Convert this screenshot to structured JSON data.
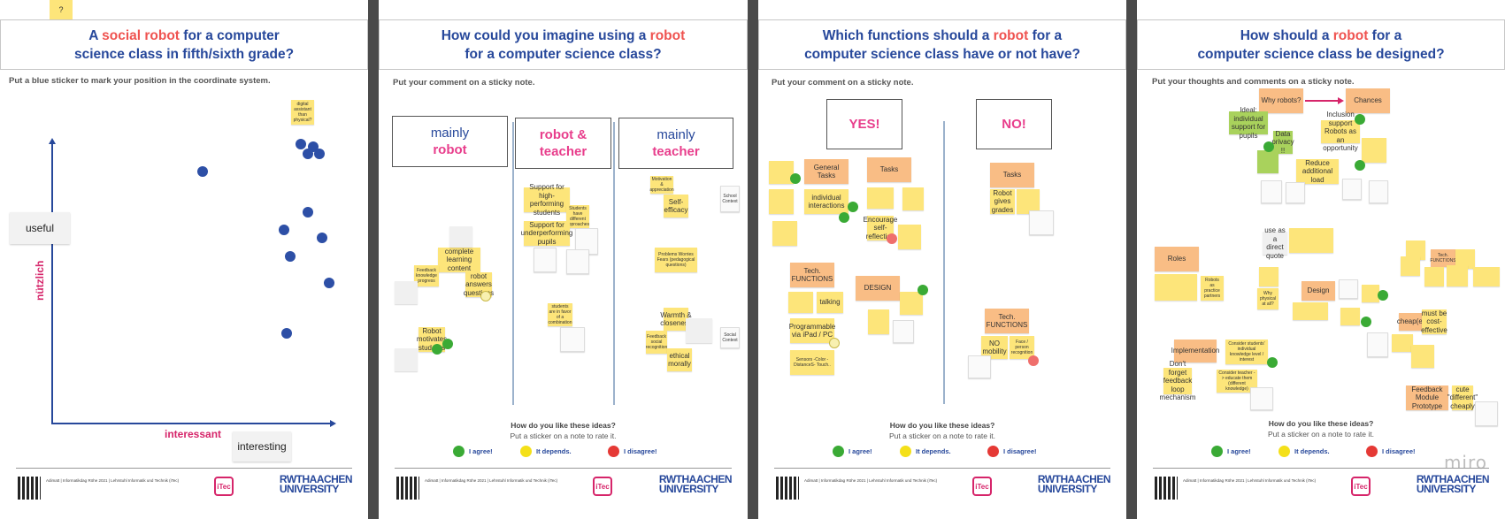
{
  "panel1": {
    "top_note": "?",
    "title_pre": "A ",
    "title_red": "social robot",
    "title_post1": " for a computer",
    "title_line2": "science class in fifth/sixth grade?",
    "instruction": "Put a blue sticker to mark your position in the coordinate system.",
    "y_label_en": "useful",
    "y_label_de": "nützlich",
    "x_label_de": "interessant",
    "x_label_en": "interesting",
    "corner_note": "digital assistant than physical?"
  },
  "panel2": {
    "title_line1_pre": "How could you imagine using a ",
    "title_line1_red": "robot",
    "title_line2": "for a computer science class?",
    "instruction": "Put your comment on a sticky note.",
    "col1_line1": "mainly",
    "col1_line2": "robot",
    "col2_line1": "robot &",
    "col2_line2": "teacher",
    "col3_line1": "mainly",
    "col3_line2": "teacher",
    "notes": {
      "n1": "complete learning content",
      "n2": "robot answers questions",
      "n3": "Feedback knowledge progress",
      "n4": "Robot motivates students",
      "n5": "Support for high-performing students",
      "n6": "Students have different approaches",
      "n7": "Support for underperforming pupils",
      "n8": "students are in favor of a combination",
      "n9": "Motivation & appreciation",
      "n10": "Self-efficacy",
      "n11": "School Context",
      "n12": "Problems Worries Fears (pedagogical questions)",
      "n13": "Social Context",
      "n14": "Warmth & closeness",
      "n15": "Feedback social recognition",
      "n16": "ethical morally"
    }
  },
  "panel3": {
    "title_line1_pre": "Which functions should a ",
    "title_line1_red": "robot",
    "title_line1_post": " for a",
    "title_line2": "computer science class have or not have?",
    "instruction": "Put your comment on a sticky note.",
    "yes": "YES!",
    "no": "NO!",
    "notes": {
      "general": "General Tasks",
      "tasks": "Tasks",
      "individual": "individual interactions",
      "encourage": "Encourage self-reflection",
      "tech": "Tech. FUNCTIONS",
      "talking": "talking",
      "programmable": "Programmable via iPad / PC",
      "sensors": "Sensors -Color -DistanceS- Touch..",
      "design": "DESIGN",
      "no_tasks": "Tasks",
      "robot_gives_grades": "Robot gives grades",
      "no_tech": "Tech. FUNCTIONS",
      "no_mobility": "NO mobility",
      "face_rec": "Face / person recognition"
    }
  },
  "panel4": {
    "title_line1_pre": "How should a ",
    "title_line1_red": "robot",
    "title_line1_post": " for a",
    "title_line2": "computer science class be designed?",
    "instruction": "Put your thoughts and comments on a sticky note.",
    "notes": {
      "why": "Why robots?",
      "chances": "Chances",
      "ideal": "Ideal: individual support for pupils",
      "privacy": "Data privacy !!",
      "inclusion": "Inclusion support Robots as an opportunity",
      "reduce": "Reduce additional load",
      "roles": "Roles",
      "direct": "use as a direct quote",
      "design": "Design",
      "implementation": "Implementation",
      "consider": "Consider students' individual knowledge level / interest",
      "dont_forget": "Don't forget feedback loop mechanism",
      "consider_teacher": "Consider teacher -> educate them (different knowledge)",
      "tech": "Tech. FUNCTIONS",
      "cheap": "cheap(er)",
      "cost": "must be cost-effective",
      "feedback": "Feedback Module Prototype",
      "cute": "cute \"different\" cheaply",
      "robots_partners": "Robots as practice partners",
      "why_physical": "Why physical at all?"
    }
  },
  "rating": {
    "question": "How do you like these ideas?",
    "sub": "Put a sticker on a note to rate it.",
    "agree": "I agree!",
    "depends": "It depends.",
    "disagree": "I disagree!",
    "colors": {
      "agree": "#3aaa35",
      "depends": "#f4e019",
      "disagree": "#e53935"
    }
  },
  "footer": {
    "line1": "Adimatt | Informatikdag Röhe 2021 | Lehrstuhl Informatik und Technik (iTec)",
    "names": "Stefan Schiffer\nMaria Tomp\nAnn-Sophie Schenk",
    "emails": "stefan.schiffer@rwth-aachen.de\nmaria.tomp@itec.rwth-aachen.de\nann-sophie.schenk@itec.rwth-aachen.de",
    "itec": "iTec",
    "rwth1": "RWTHAACHEN",
    "rwth2": "UNIVERSITY"
  },
  "watermark": "miro"
}
